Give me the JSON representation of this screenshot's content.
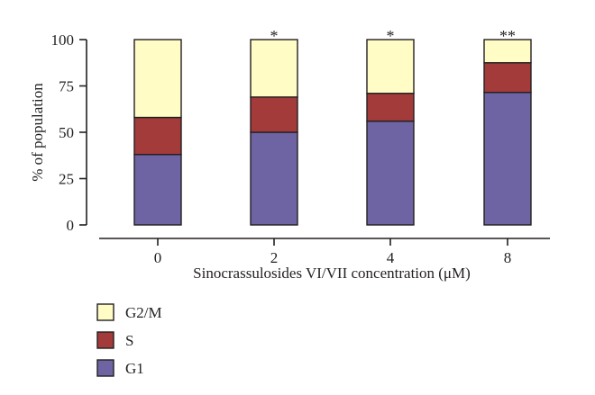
{
  "chart_data": {
    "type": "bar",
    "stacked": true,
    "categories": [
      "0",
      "2",
      "4",
      "8"
    ],
    "series": [
      {
        "name": "G1",
        "values": [
          38,
          50,
          56,
          71.5
        ],
        "color": "#6f64a3"
      },
      {
        "name": "S",
        "values": [
          20,
          19,
          15,
          16
        ],
        "color": "#a33b3b"
      },
      {
        "name": "G2/M",
        "values": [
          42,
          31,
          29,
          12.5
        ],
        "color": "#fffcc6"
      }
    ],
    "significance": [
      "",
      "*",
      "*",
      "**"
    ],
    "xlabel": "Sinocrassulosides VI/VII concentration (μM)",
    "ylabel": "% of population",
    "ylim": [
      0,
      100
    ],
    "yticks": [
      0,
      25,
      50,
      75,
      100
    ],
    "legend_order": [
      "G2/M",
      "S",
      "G1"
    ],
    "legend_position": "bottom-left",
    "grid": false
  }
}
